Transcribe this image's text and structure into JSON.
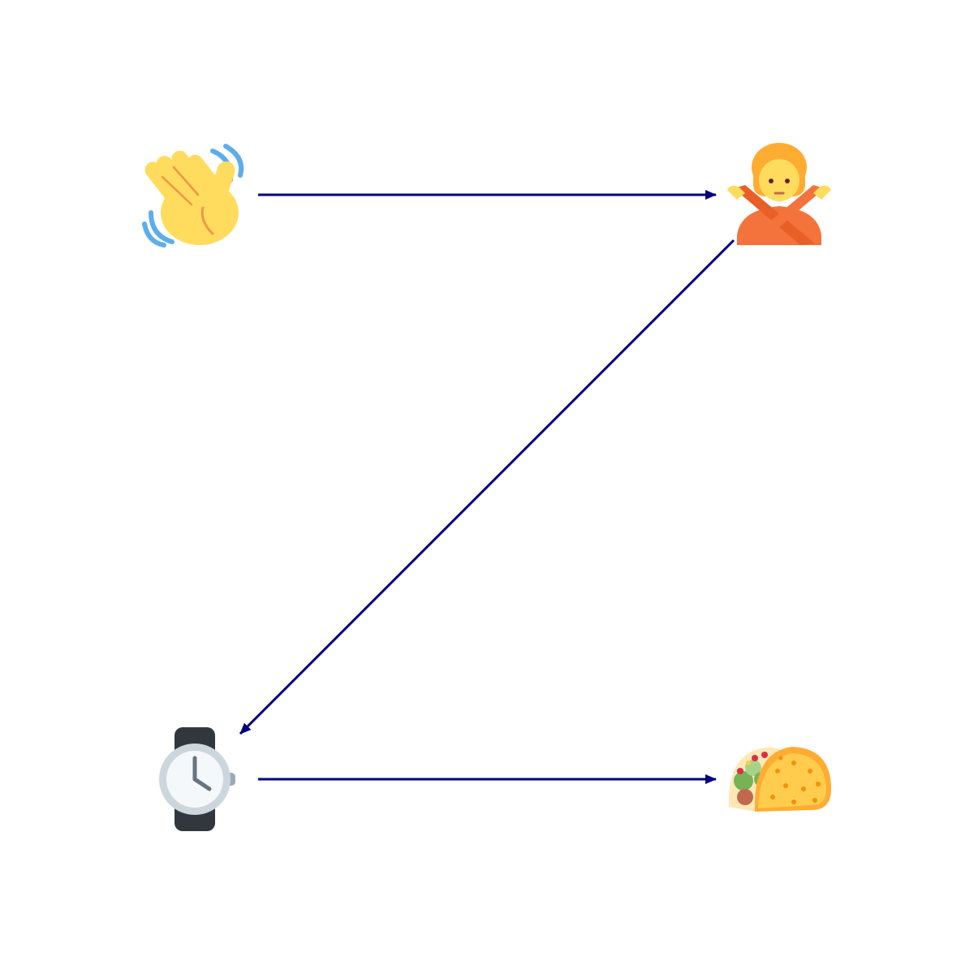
{
  "diagram": {
    "edge_color": "#000080",
    "nodes": [
      {
        "id": "wave",
        "icon": "waving-hand-icon"
      },
      {
        "id": "no-gesture",
        "icon": "person-gesturing-no-icon"
      },
      {
        "id": "watch",
        "icon": "wristwatch-icon"
      },
      {
        "id": "taco",
        "icon": "taco-icon"
      }
    ],
    "edges": [
      {
        "from": "wave",
        "to": "no-gesture"
      },
      {
        "from": "no-gesture",
        "to": "watch"
      },
      {
        "from": "watch",
        "to": "taco"
      }
    ]
  }
}
